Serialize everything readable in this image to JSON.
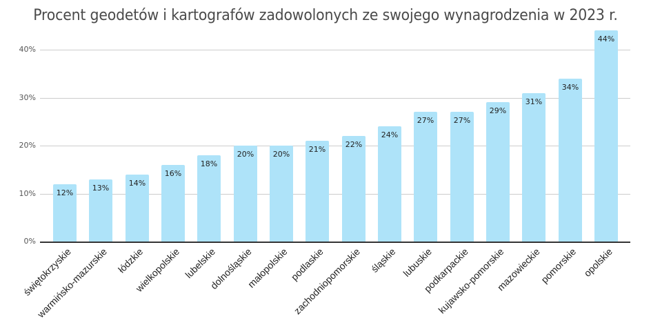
{
  "chart_data": {
    "type": "bar",
    "title": "Procent geodetów i kartografów zadowolonych ze swojego wynagrodzenia w 2023 r.",
    "xlabel": "",
    "ylabel": "",
    "ylim": [
      0,
      40
    ],
    "yticks": [
      "0%",
      "10%",
      "20%",
      "30%",
      "40%"
    ],
    "grid": true,
    "legend": null,
    "bar_color": "#aee3f9",
    "categories": [
      "świętokrzyskie",
      "warmińsko-mazurskie",
      "łódzkie",
      "wielkopolskie",
      "lubelskie",
      "dolnośląskie",
      "małopolskie",
      "podlaskie",
      "zachodniopomorskie",
      "śląskie",
      "lubuskie",
      "podkarpackie",
      "kujawsko-pomorskie",
      "mazowieckie",
      "pomorskie",
      "opolskie"
    ],
    "values": [
      12,
      13,
      14,
      16,
      18,
      20,
      20,
      21,
      22,
      24,
      27,
      27,
      29,
      31,
      34,
      44
    ],
    "data_labels": [
      "12%",
      "13%",
      "14%",
      "16%",
      "18%",
      "20%",
      "20%",
      "21%",
      "22%",
      "24%",
      "27%",
      "27%",
      "29%",
      "31%",
      "34%",
      "44%"
    ]
  }
}
